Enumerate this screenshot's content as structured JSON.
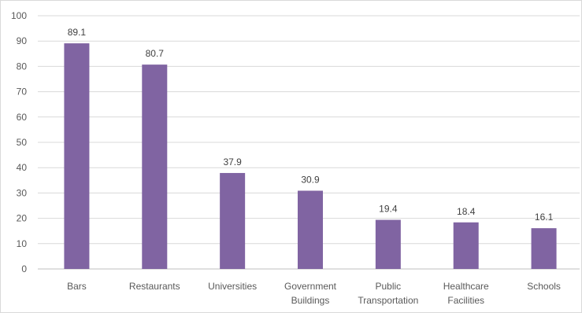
{
  "chart_data": {
    "type": "bar",
    "categories": [
      [
        "Bars"
      ],
      [
        "Restaurants"
      ],
      [
        "Universities"
      ],
      [
        "Government",
        "Buildings"
      ],
      [
        "Public",
        "Transportation"
      ],
      [
        "Healthcare",
        "Facilities"
      ],
      [
        "Schools"
      ]
    ],
    "values": [
      89.1,
      80.7,
      37.9,
      30.9,
      19.4,
      18.4,
      16.1
    ],
    "data_labels": [
      "89.1",
      "80.7",
      "37.9",
      "30.9",
      "19.4",
      "18.4",
      "16.1"
    ],
    "yticks": [
      "0",
      "10",
      "20",
      "30",
      "40",
      "50",
      "60",
      "70",
      "80",
      "90",
      "100"
    ],
    "ylim": [
      0,
      100
    ],
    "title": "",
    "xlabel": "",
    "ylabel": "",
    "grid": true,
    "legend": "none",
    "bar_color": "#8064a2",
    "grid_color": "#d9d9d9"
  }
}
